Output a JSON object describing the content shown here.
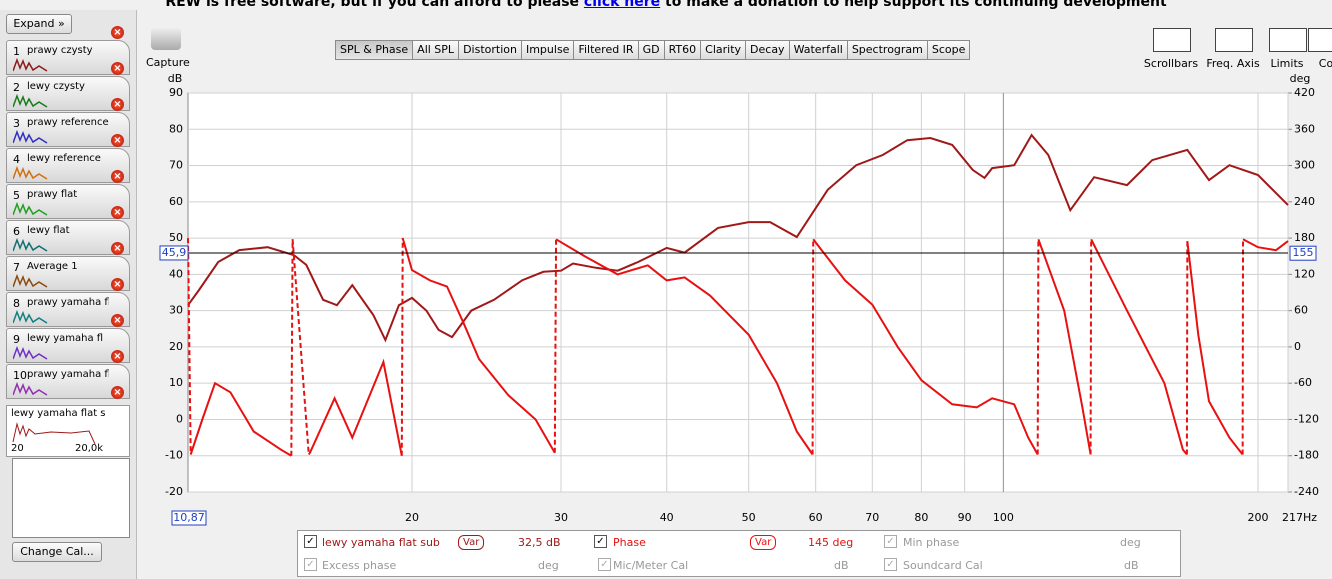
{
  "banner": {
    "before": "REW is free software, but if you can afford to please",
    "link": "click here",
    "after": "to make a donation to help support its continuing development"
  },
  "sidebar": {
    "expand": "Expand",
    "items": [
      {
        "num": "1",
        "label": "prawy czysty",
        "color": "#8b1a1a"
      },
      {
        "num": "2",
        "label": "lewy czysty",
        "color": "#1a7a1a"
      },
      {
        "num": "3",
        "label": "prawy reference",
        "color": "#3030c0"
      },
      {
        "num": "4",
        "label": "lewy reference",
        "color": "#d07010"
      },
      {
        "num": "5",
        "label": "prawy flat",
        "color": "#20a020"
      },
      {
        "num": "6",
        "label": "lewy flat",
        "color": "#107070"
      },
      {
        "num": "7",
        "label": "Average 1",
        "color": "#8b4a10"
      },
      {
        "num": "8",
        "label": "prawy yamaha fl",
        "color": "#108080"
      },
      {
        "num": "9",
        "label": "lewy yamaha fl",
        "color": "#7030c0"
      },
      {
        "num": "10",
        "label": "prawy yamaha fl",
        "color": "#9030b0"
      }
    ],
    "selected": {
      "label": "lewy yamaha flat s",
      "axis_min": "20",
      "axis_max": "20,0k"
    },
    "change_cal": "Change Cal..."
  },
  "toolbar": {
    "capture": "Capture",
    "tabs": [
      "SPL & Phase",
      "All SPL",
      "Distortion",
      "Impulse",
      "Filtered IR",
      "GD",
      "RT60",
      "Clarity",
      "Decay",
      "Waterfall",
      "Spectrogram",
      "Scope"
    ],
    "active_tab": 0,
    "right_buttons": [
      "Scrollbars",
      "Freq. Axis",
      "Limits",
      "Co"
    ]
  },
  "chart_data": {
    "type": "line",
    "ylabel": "dB",
    "y2label": "deg",
    "log_x": true,
    "grid": true,
    "xlim": [
      10.87,
      217
    ],
    "xticks": [
      20,
      30,
      40,
      50,
      60,
      70,
      80,
      90,
      100,
      200,
      {
        "value": 217,
        "label": "217Hz"
      }
    ],
    "ylim": [
      -20,
      90
    ],
    "yticks": [
      -20,
      -10,
      0,
      10,
      20,
      30,
      40,
      50,
      60,
      70,
      80,
      90
    ],
    "y2lim": [
      -240,
      420
    ],
    "y2ticks": [
      -240,
      -180,
      -120,
      -60,
      0,
      60,
      120,
      180,
      240,
      300,
      360,
      420
    ],
    "cursor": {
      "y": {
        "value": 45.9,
        "label": "45,9"
      },
      "y2": 155,
      "x": {
        "value": 10.87,
        "label": "10,87"
      }
    },
    "series": [
      {
        "name": "lewy yamaha flat sub",
        "color": "#a01818",
        "readout": "32,5 dB",
        "var_button": "Var",
        "x": [
          10.87,
          11.2,
          11.8,
          12.5,
          13.5,
          14.5,
          15,
          15.7,
          16.3,
          17,
          18,
          18.6,
          19.3,
          20,
          20.8,
          21.5,
          22.3,
          23.5,
          25,
          27,
          28.6,
          30,
          31,
          33,
          35,
          37,
          40,
          42,
          46,
          50,
          53,
          57,
          62,
          67,
          72,
          77,
          82,
          87,
          92,
          95,
          97,
          103,
          108,
          113,
          120,
          128,
          140,
          150,
          165,
          175,
          185,
          200,
          217
        ],
        "values": [
          31.5,
          35.7,
          43.4,
          46.7,
          47.5,
          45.3,
          42.6,
          33,
          31.5,
          37,
          28.8,
          21.9,
          31.5,
          33.5,
          30,
          24.7,
          22.7,
          30,
          33,
          38.4,
          40.7,
          41,
          43,
          41.8,
          41,
          43.4,
          47.3,
          46,
          52.8,
          54.4,
          54.4,
          50.3,
          63.3,
          70.1,
          72.9,
          77,
          77.6,
          75.7,
          68.8,
          66.6,
          69.3,
          70.1,
          78.4,
          72.9,
          57.7,
          66.8,
          64.6,
          71.5,
          74.3,
          66,
          70.1,
          67.4,
          59.1
        ]
      },
      {
        "name": "Phase",
        "color": "#e81010",
        "axis": "y2",
        "readout": "145 deg",
        "var_button": "Var",
        "x": [
          10.87,
          10.95,
          11.3,
          11.7,
          12.2,
          13,
          14,
          14.4,
          14.45,
          15.1,
          15.15,
          16.2,
          17,
          18.5,
          19.45,
          19.5,
          20,
          21,
          22,
          23,
          24,
          26,
          28,
          29.5,
          29.6,
          32,
          35,
          38,
          40,
          42,
          45,
          50,
          54,
          57,
          59.5,
          59.6,
          65,
          70,
          75,
          80,
          87,
          93,
          97,
          103,
          107,
          109.8,
          110,
          118,
          124,
          126.8,
          127,
          140,
          155,
          163,
          164.8,
          165,
          170,
          175,
          185,
          191.8,
          192,
          200,
          210,
          217
        ],
        "values": [
          180,
          -178,
          -120,
          -60,
          -75,
          -140,
          -170,
          -180,
          178,
          -178,
          -175,
          -85,
          -150,
          -25,
          -180,
          180,
          127,
          110,
          100,
          40,
          -20,
          -80,
          -120,
          -175,
          178,
          150,
          120,
          135,
          110,
          115,
          85,
          20,
          -60,
          -140,
          -178,
          178,
          110,
          70,
          0,
          -55,
          -95,
          -100,
          -85,
          -95,
          -150,
          -178,
          178,
          60,
          -100,
          -178,
          178,
          60,
          -60,
          -170,
          -178,
          175,
          20,
          -90,
          -150,
          -178,
          178,
          165,
          160,
          175
        ]
      }
    ],
    "legend_extra": [
      {
        "label": "Min phase",
        "unit": "deg"
      },
      {
        "label": "Excess phase",
        "unit": "deg"
      },
      {
        "label": "Mic/Meter Cal",
        "unit": "dB"
      },
      {
        "label": "Soundcard Cal",
        "unit": "dB"
      }
    ]
  }
}
